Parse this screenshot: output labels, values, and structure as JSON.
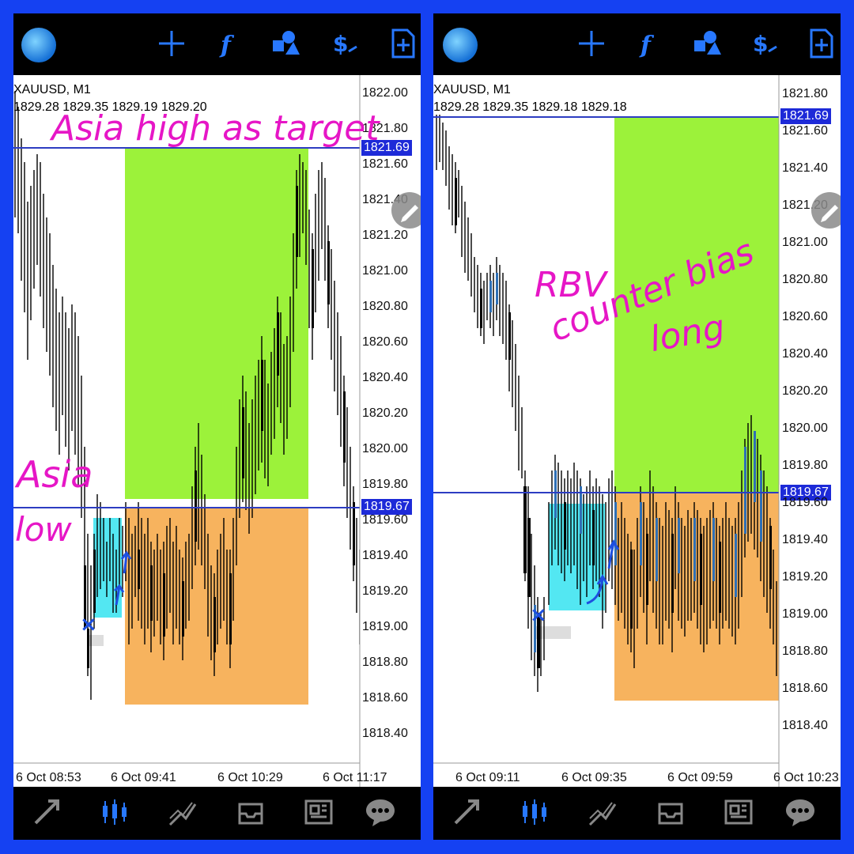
{
  "colors": {
    "frame": "#1541f2",
    "icon_blue": "#2878ff",
    "target_zone": "#9cf23a",
    "stop_zone": "#f7b35e",
    "entry_zone": "#53e7f2",
    "level_line": "#2d3dc2",
    "annotation": "#e616c6",
    "candle_bull": "#2e6fb5",
    "candle_bear": "#000000"
  },
  "toolbar_icons": [
    "crosshair-icon",
    "indicators-f-icon",
    "objects-icon",
    "symbol-dollar-icon",
    "new-order-icon"
  ],
  "bottom_nav_icons": [
    "trade-icon",
    "chart-icon",
    "analysis-icon",
    "mailbox-icon",
    "news-icon",
    "chat-icon"
  ],
  "panels": [
    {
      "symbol": "XAUUSD, M1",
      "ohlc": "1829.28 1829.35 1829.19 1829.20",
      "price_axis": [
        "1822.00",
        "1821.80",
        "1821.60",
        "1821.40",
        "1821.20",
        "1821.00",
        "1820.80",
        "1820.60",
        "1820.40",
        "1820.20",
        "1820.00",
        "1819.80",
        "1819.60",
        "1819.40",
        "1819.20",
        "1819.00",
        "1818.80",
        "1818.60",
        "1818.40"
      ],
      "time_axis": [
        "6 Oct 08:53",
        "6 Oct 09:41",
        "6 Oct 10:29",
        "6 Oct 11:17"
      ],
      "upper_level": "1821.69",
      "lower_level": "1819.67",
      "annotations": [
        "Asia high  as target",
        "Asia",
        "low"
      ]
    },
    {
      "symbol": "XAUUSD, M1",
      "ohlc": "1829.28 1829.35 1829.18 1829.18",
      "price_axis": [
        "1821.80",
        "1821.60",
        "1821.40",
        "1821.20",
        "1821.00",
        "1820.80",
        "1820.60",
        "1820.40",
        "1820.20",
        "1820.00",
        "1819.80",
        "1819.60",
        "1819.40",
        "1819.20",
        "1819.00",
        "1818.80",
        "1818.60",
        "1818.40"
      ],
      "time_axis": [
        "6 Oct 09:11",
        "6 Oct 09:35",
        "6 Oct 09:59",
        "6 Oct 10:23"
      ],
      "upper_level": "1821.69",
      "lower_level": "1819.67",
      "annotations": [
        "RBV",
        "counter bias",
        "long"
      ]
    }
  ]
}
